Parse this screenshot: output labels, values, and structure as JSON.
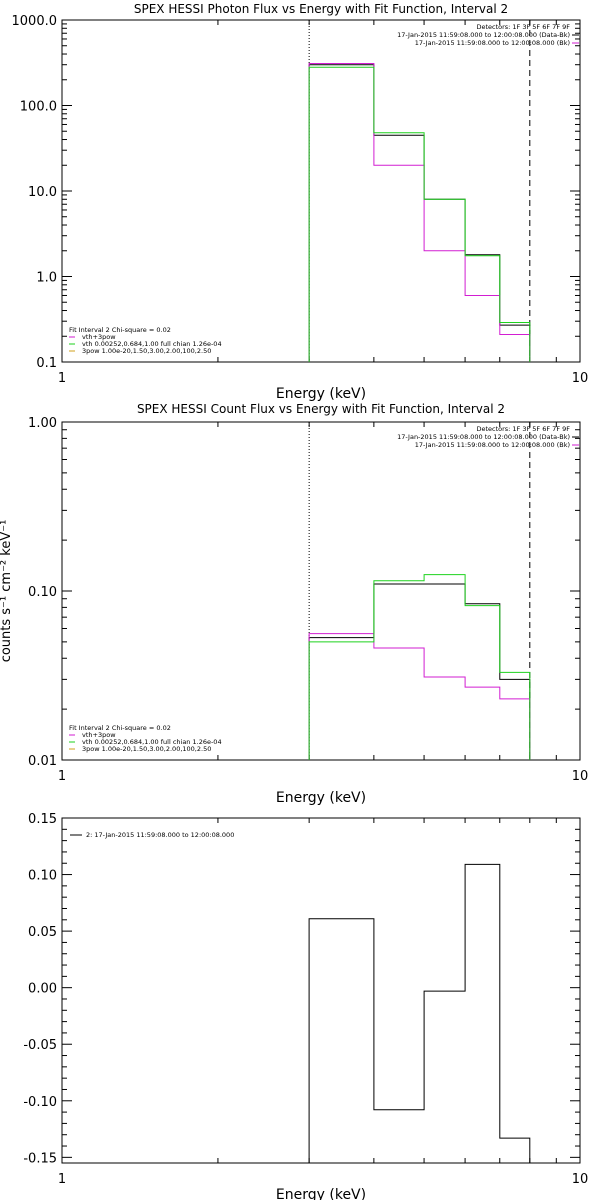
{
  "colors": {
    "black": "#000000",
    "magenta": "#d21ed2",
    "green": "#1ed21e",
    "orange": "#d2a01e"
  },
  "chart_data": [
    {
      "type": "line",
      "title": "SPEX HESSI Photon Flux vs Energy with Fit Function, Interval 2",
      "xlabel": "Energy (keV)",
      "ylabel": "",
      "xscale": "log",
      "yscale": "log",
      "xlim": [
        1,
        10
      ],
      "ylim": [
        0.1,
        1000
      ],
      "xticks": [
        "1",
        "10"
      ],
      "yticks": [
        "0.1",
        "1.0",
        "10.0",
        "100.0",
        "1000.0"
      ],
      "vlines": {
        "dotted": 3.0,
        "dashed": 8.0
      },
      "bin_edges": [
        3.0,
        4.0,
        5.0,
        6.0,
        7.0,
        8.0
      ],
      "series": [
        {
          "color": "#000000",
          "values": [
            300,
            45,
            8,
            1.8,
            0.27
          ]
        },
        {
          "color": "#d21ed2",
          "values": [
            310,
            20,
            2,
            0.6,
            0.21
          ]
        },
        {
          "color": "#1ed21e",
          "values": [
            280,
            48,
            8,
            1.75,
            0.29
          ]
        }
      ],
      "legend_top": [
        "Detectors: 1F 3F 5F 6F 7F 9F",
        "17-Jan-2015 11:59:08.000 to 12:00:08.000 (Data-Bk)",
        "17-Jan-2015 11:59:08.000 to 12:00:08.000 (Bk)"
      ],
      "legend_top_colors": [
        "#000000",
        "#000000",
        "#d21ed2"
      ],
      "legend_bottom": [
        "Fit Interval 2   Chi-square = 0.02",
        "vth+3pow",
        "vth 0.00252,0.684,1.00  full chian 1.26e-04",
        "3pow 1.00e-20,1.50,3.00,2.00,100,2.50"
      ],
      "legend_bottom_colors": [
        "",
        "#d21ed2",
        "#1ed21e",
        "#d2a01e"
      ]
    },
    {
      "type": "line",
      "title": "SPEX HESSI Count Flux vs Energy with Fit Function, Interval 2",
      "xlabel": "Energy (keV)",
      "ylabel": "counts s⁻¹ cm⁻² keV⁻¹",
      "xscale": "log",
      "yscale": "log",
      "xlim": [
        1,
        10
      ],
      "ylim": [
        0.01,
        1.0
      ],
      "xticks": [
        "1",
        "10"
      ],
      "yticks": [
        "0.01",
        "0.10",
        "1.00"
      ],
      "vlines": {
        "dotted": 3.0,
        "dashed": 8.0
      },
      "bin_edges": [
        3.0,
        4.0,
        5.0,
        6.0,
        7.0,
        8.0
      ],
      "series": [
        {
          "color": "#000000",
          "values": [
            0.053,
            0.11,
            0.11,
            0.084,
            0.03
          ]
        },
        {
          "color": "#d21ed2",
          "values": [
            0.056,
            0.046,
            0.031,
            0.027,
            0.023
          ]
        },
        {
          "color": "#1ed21e",
          "values": [
            0.05,
            0.115,
            0.125,
            0.082,
            0.033
          ]
        }
      ],
      "legend_top": [
        "Detectors: 1F 3F 5F 6F 7F 9F",
        "17-Jan-2015 11:59:08.000 to 12:00:08.000 (Data-Bk)",
        "17-Jan-2015 11:59:08.000 to 12:00:08.000 (Bk)"
      ],
      "legend_top_colors": [
        "#000000",
        "#000000",
        "#d21ed2"
      ],
      "legend_bottom": [
        "Fit Interval 2   Chi-square = 0.02",
        "vth+3pow",
        "vth 0.00252,0.684,1.00  full chian 1.26e-04",
        "3pow 1.00e-20,1.50,3.00,2.00,100,2.50"
      ],
      "legend_bottom_colors": [
        "",
        "#d21ed2",
        "#1ed21e",
        "#d2a01e"
      ]
    },
    {
      "type": "line",
      "title": "",
      "xlabel": "Energy (keV)",
      "ylabel": "",
      "xscale": "log",
      "yscale": "linear",
      "xlim": [
        1,
        10
      ],
      "ylim": [
        -0.155,
        0.15
      ],
      "xticks": [
        "1",
        "10"
      ],
      "yticks": [
        "-0.15",
        "-0.10",
        "-0.05",
        "0.00",
        "0.05",
        "0.10",
        "0.15"
      ],
      "bin_edges": [
        3.0,
        4.0,
        5.0,
        6.0,
        7.0,
        8.0
      ],
      "series": [
        {
          "color": "#000000",
          "values": [
            0.061,
            -0.108,
            -0.003,
            0.109,
            -0.133
          ]
        }
      ],
      "legend_top": [
        "2: 17-Jan-2015 11:59:08.000 to 12:00:08.000"
      ],
      "legend_top_colors": [
        "#000000"
      ],
      "legend_bottom": [],
      "legend_bottom_colors": []
    }
  ]
}
